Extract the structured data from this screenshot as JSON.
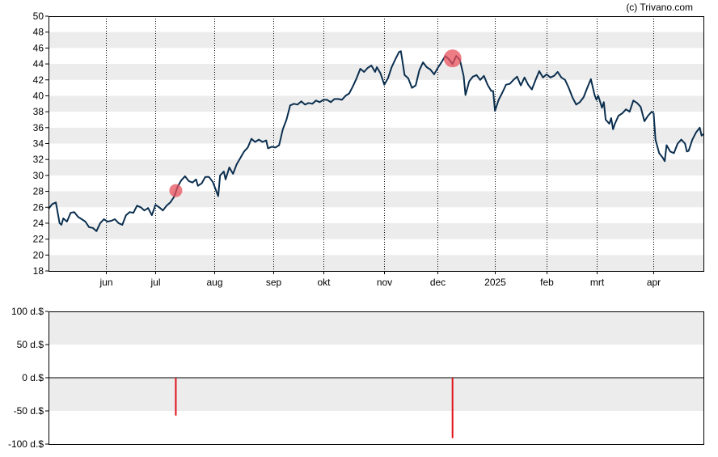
{
  "credit": "(c) Trivano.com",
  "colors": {
    "line": "#0b2f4f",
    "marker": "#e8505b",
    "band": "#ececec",
    "grid": "#000000",
    "bar": "#e0121b"
  },
  "chart_data": [
    {
      "type": "line",
      "name": "price",
      "y_ticks": [
        "18",
        "20",
        "22",
        "24",
        "26",
        "28",
        "30",
        "32",
        "34",
        "36",
        "38",
        "40",
        "42",
        "44",
        "46",
        "48",
        "50"
      ],
      "ylim": [
        18,
        50
      ],
      "x_range": [
        0,
        355
      ],
      "x_ticks": [
        {
          "label": "jun",
          "t": 31
        },
        {
          "label": "jul",
          "t": 58
        },
        {
          "label": "aug",
          "t": 90
        },
        {
          "label": "sep",
          "t": 122
        },
        {
          "label": "okt",
          "t": 149
        },
        {
          "label": "nov",
          "t": 182
        },
        {
          "label": "dec",
          "t": 211
        },
        {
          "label": "2025",
          "t": 242
        },
        {
          "label": "feb",
          "t": 270
        },
        {
          "label": "mrt",
          "t": 297
        },
        {
          "label": "apr",
          "t": 328
        }
      ],
      "grid": "vertical dotted at month ticks, alternating horizontal bands",
      "series": [
        {
          "points": [
            [
              0,
              25.8
            ],
            [
              2,
              26.4
            ],
            [
              4,
              26.6
            ],
            [
              6,
              24.0
            ],
            [
              7,
              23.8
            ],
            [
              8,
              24.6
            ],
            [
              10,
              24.2
            ],
            [
              12,
              25.3
            ],
            [
              14,
              25.4
            ],
            [
              16,
              24.8
            ],
            [
              18,
              24.5
            ],
            [
              20,
              24.2
            ],
            [
              22,
              23.5
            ],
            [
              24,
              23.4
            ],
            [
              26,
              23.0
            ],
            [
              28,
              24.0
            ],
            [
              30,
              24.5
            ],
            [
              32,
              24.2
            ],
            [
              34,
              24.3
            ],
            [
              36,
              24.5
            ],
            [
              38,
              24.0
            ],
            [
              40,
              23.8
            ],
            [
              42,
              25.0
            ],
            [
              44,
              25.4
            ],
            [
              46,
              25.3
            ],
            [
              48,
              26.2
            ],
            [
              50,
              26.0
            ],
            [
              52,
              25.6
            ],
            [
              54,
              25.9
            ],
            [
              56,
              25.0
            ],
            [
              58,
              26.3
            ],
            [
              60,
              26.0
            ],
            [
              62,
              25.6
            ],
            [
              64,
              26.2
            ],
            [
              66,
              26.6
            ],
            [
              68,
              27.3
            ],
            [
              70,
              28.6
            ],
            [
              72,
              29.4
            ],
            [
              74,
              29.9
            ],
            [
              76,
              29.3
            ],
            [
              78,
              29.1
            ],
            [
              80,
              29.5
            ],
            [
              81,
              28.7
            ],
            [
              83,
              29.0
            ],
            [
              85,
              29.8
            ],
            [
              87,
              29.8
            ],
            [
              89,
              29.2
            ],
            [
              90,
              28.6
            ],
            [
              92,
              27.4
            ],
            [
              93,
              30.0
            ],
            [
              95,
              30.5
            ],
            [
              96,
              29.5
            ],
            [
              98,
              31.0
            ],
            [
              100,
              30.2
            ],
            [
              102,
              31.4
            ],
            [
              104,
              32.2
            ],
            [
              106,
              33.0
            ],
            [
              108,
              33.5
            ],
            [
              110,
              34.6
            ],
            [
              112,
              34.2
            ],
            [
              114,
              34.5
            ],
            [
              116,
              34.2
            ],
            [
              118,
              34.4
            ],
            [
              119,
              33.4
            ],
            [
              121,
              33.6
            ],
            [
              123,
              33.5
            ],
            [
              125,
              33.8
            ],
            [
              127,
              35.8
            ],
            [
              129,
              37.0
            ],
            [
              131,
              38.8
            ],
            [
              133,
              39.0
            ],
            [
              135,
              38.9
            ],
            [
              137,
              39.3
            ],
            [
              139,
              38.9
            ],
            [
              141,
              39.1
            ],
            [
              143,
              39.0
            ],
            [
              145,
              39.4
            ],
            [
              147,
              39.2
            ],
            [
              149,
              39.5
            ],
            [
              151,
              39.5
            ],
            [
              153,
              39.2
            ],
            [
              155,
              39.6
            ],
            [
              157,
              39.6
            ],
            [
              159,
              39.5
            ],
            [
              161,
              40.0
            ],
            [
              163,
              40.3
            ],
            [
              165,
              41.2
            ],
            [
              167,
              42.2
            ],
            [
              169,
              43.4
            ],
            [
              171,
              43.0
            ],
            [
              173,
              43.5
            ],
            [
              175,
              43.8
            ],
            [
              177,
              43.0
            ],
            [
              178,
              43.6
            ],
            [
              180,
              42.8
            ],
            [
              182,
              41.4
            ],
            [
              184,
              42.2
            ],
            [
              186,
              43.6
            ],
            [
              188,
              44.6
            ],
            [
              190,
              45.5
            ],
            [
              191,
              45.6
            ],
            [
              193,
              42.6
            ],
            [
              195,
              42.2
            ],
            [
              197,
              41.0
            ],
            [
              199,
              41.3
            ],
            [
              201,
              43.2
            ],
            [
              203,
              44.2
            ],
            [
              205,
              43.6
            ],
            [
              207,
              43.3
            ],
            [
              209,
              42.7
            ],
            [
              211,
              43.5
            ],
            [
              213,
              44.2
            ],
            [
              215,
              45.0
            ],
            [
              217,
              44.6
            ],
            [
              219,
              44.0
            ],
            [
              221,
              45.0
            ],
            [
              223,
              44.5
            ],
            [
              225,
              42.5
            ],
            [
              226,
              40.1
            ],
            [
              228,
              41.8
            ],
            [
              230,
              42.4
            ],
            [
              232,
              42.6
            ],
            [
              234,
              42.0
            ],
            [
              236,
              42.5
            ],
            [
              238,
              41.4
            ],
            [
              240,
              40.6
            ],
            [
              241,
              40.6
            ],
            [
              242,
              38.1
            ],
            [
              244,
              39.5
            ],
            [
              246,
              40.4
            ],
            [
              248,
              41.4
            ],
            [
              250,
              41.5
            ],
            [
              252,
              42.0
            ],
            [
              254,
              42.4
            ],
            [
              256,
              41.3
            ],
            [
              258,
              42.3
            ],
            [
              260,
              41.4
            ],
            [
              262,
              40.8
            ],
            [
              264,
              42.0
            ],
            [
              266,
              43.1
            ],
            [
              268,
              42.3
            ],
            [
              270,
              42.7
            ],
            [
              272,
              42.3
            ],
            [
              274,
              42.5
            ],
            [
              276,
              43.0
            ],
            [
              278,
              42.3
            ],
            [
              280,
              42.0
            ],
            [
              282,
              41.0
            ],
            [
              284,
              39.8
            ],
            [
              286,
              38.9
            ],
            [
              288,
              39.2
            ],
            [
              290,
              39.8
            ],
            [
              292,
              41.0
            ],
            [
              294,
              42.1
            ],
            [
              296,
              40.1
            ],
            [
              297,
              39.5
            ],
            [
              298,
              40.0
            ],
            [
              300,
              38.5
            ],
            [
              301,
              39.2
            ],
            [
              302,
              37.0
            ],
            [
              304,
              36.5
            ],
            [
              305,
              37.2
            ],
            [
              306,
              35.8
            ],
            [
              307,
              36.5
            ],
            [
              309,
              37.5
            ],
            [
              311,
              37.8
            ],
            [
              313,
              38.3
            ],
            [
              315,
              38.0
            ],
            [
              317,
              39.4
            ],
            [
              319,
              39.1
            ],
            [
              321,
              38.6
            ],
            [
              323,
              36.8
            ],
            [
              325,
              37.5
            ],
            [
              327,
              38.0
            ],
            [
              328,
              37.8
            ],
            [
              329,
              34.5
            ],
            [
              331,
              32.8
            ],
            [
              333,
              32.2
            ],
            [
              334,
              31.8
            ],
            [
              335,
              33.8
            ],
            [
              337,
              33.0
            ],
            [
              339,
              32.8
            ],
            [
              341,
              34.0
            ],
            [
              343,
              34.5
            ],
            [
              345,
              34.0
            ],
            [
              346,
              33.0
            ],
            [
              347,
              33.1
            ],
            [
              349,
              34.5
            ],
            [
              351,
              35.4
            ],
            [
              353,
              36.0
            ],
            [
              354,
              35.0
            ],
            [
              355,
              35.2
            ]
          ]
        }
      ],
      "markers": [
        {
          "t": 69,
          "y": 28.1,
          "size": "small"
        },
        {
          "t": 219,
          "y": 44.7,
          "size": "large"
        }
      ]
    },
    {
      "type": "bar",
      "name": "dividends",
      "y_ticks": [
        "100 d.$",
        "50 d.$",
        "0 d.$",
        "-50 d.$",
        "-100 d.$"
      ],
      "ylim": [
        -100,
        100
      ],
      "grid": "alternating horizontal bands, zero line",
      "bars": [
        {
          "t": 69,
          "value": -57
        },
        {
          "t": 219,
          "value": -91
        }
      ]
    }
  ]
}
